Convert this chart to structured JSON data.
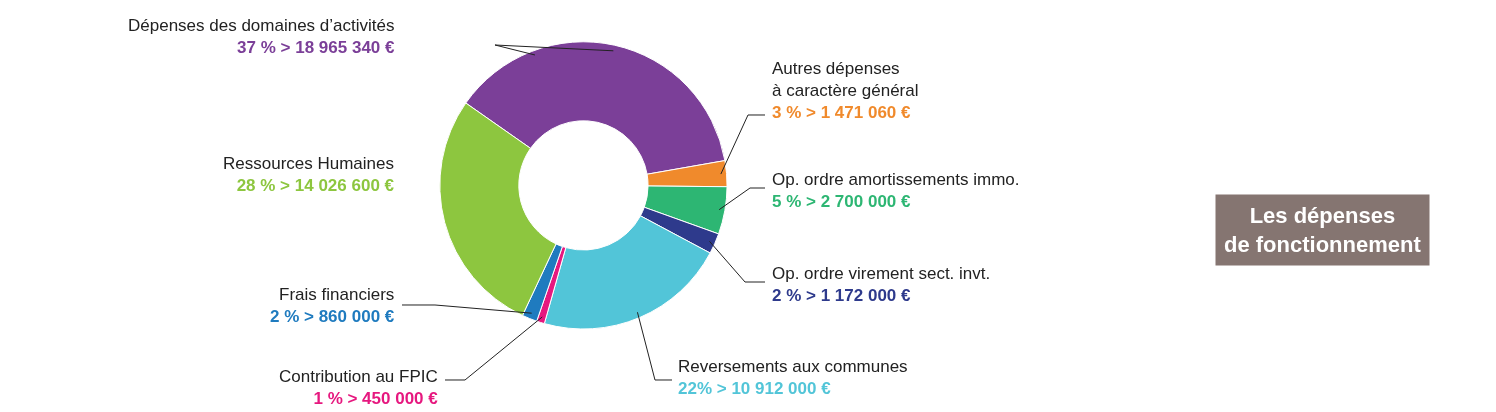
{
  "chart_data": {
    "type": "donut",
    "title": "Les dépenses\nde fonctionnement",
    "categories": [
      "Dépenses des domaines d’activités",
      "Autres dépenses\nà caractère général",
      "Op. ordre amortissements immo.",
      "Op. ordre virement sect. invt.",
      "Reversements aux communes",
      "Contribution au FPIC",
      "Frais financiers",
      "Ressources Humaines"
    ],
    "values": [
      18965340,
      1471060,
      2700000,
      1172000,
      10912000,
      450000,
      860000,
      14026600
    ],
    "value_labels": [
      "37 % > 18 965 340 €",
      "3 % > 1 471 060 €",
      "5 % > 2 700 000 €",
      "2 % > 1 172 000 €",
      "22% > 10 912 000 €",
      "1 % > 450 000 €",
      "2 % > 860 000 €",
      "28 % > 14 026 600 €"
    ],
    "colors": [
      "#7b3f98",
      "#f08a2c",
      "#2db673",
      "#2e3a8c",
      "#52c5d8",
      "#e6187f",
      "#1f7bbf",
      "#8dc63f"
    ],
    "legend": false
  }
}
